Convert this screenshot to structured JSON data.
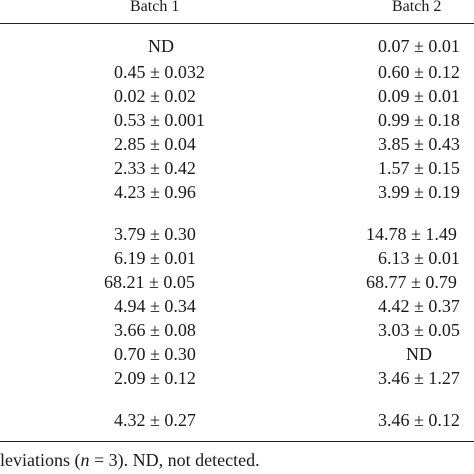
{
  "table": {
    "headers": {
      "batch1": "Batch 1",
      "batch2": "Batch 2"
    },
    "rows": [
      {
        "batch1": "ND",
        "batch2": "0.07 ± 0.01"
      },
      {
        "batch1": "0.45 ± 0.032",
        "batch2": "0.60 ± 0.12"
      },
      {
        "batch1": "0.02 ± 0.02",
        "batch2": "0.09 ± 0.01"
      },
      {
        "batch1": "0.53 ± 0.001",
        "batch2": "0.99 ± 0.18"
      },
      {
        "batch1": "2.85 ± 0.04",
        "batch2": "3.85 ± 0.43"
      },
      {
        "batch1": "2.33 ± 0.42",
        "batch2": "1.57 ± 0.15"
      },
      {
        "batch1": "4.23 ± 0.96",
        "batch2": "3.99 ± 0.19"
      },
      {
        "batch1": "3.79 ± 0.30",
        "batch2": "14.78 ± 1.49"
      },
      {
        "batch1": "6.19 ± 0.01",
        "batch2": "6.13 ± 0.01"
      },
      {
        "batch1": "68.21 ± 0.05",
        "batch2": "68.77 ± 0.79"
      },
      {
        "batch1": "4.94 ± 0.34",
        "batch2": "4.42 ± 0.37"
      },
      {
        "batch1": "3.66 ± 0.08",
        "batch2": "3.03 ± 0.05"
      },
      {
        "batch1": "0.70 ± 0.30",
        "batch2": "ND"
      },
      {
        "batch1": "2.09 ± 0.12",
        "batch2": "3.46 ± 1.27"
      },
      {
        "batch1": "4.32 ± 0.27",
        "batch2": "3.46 ± 0.12"
      }
    ]
  },
  "footnote": {
    "prefix": "leviations (",
    "n_var": "n",
    "suffix": " = 3). ND, not detected."
  }
}
